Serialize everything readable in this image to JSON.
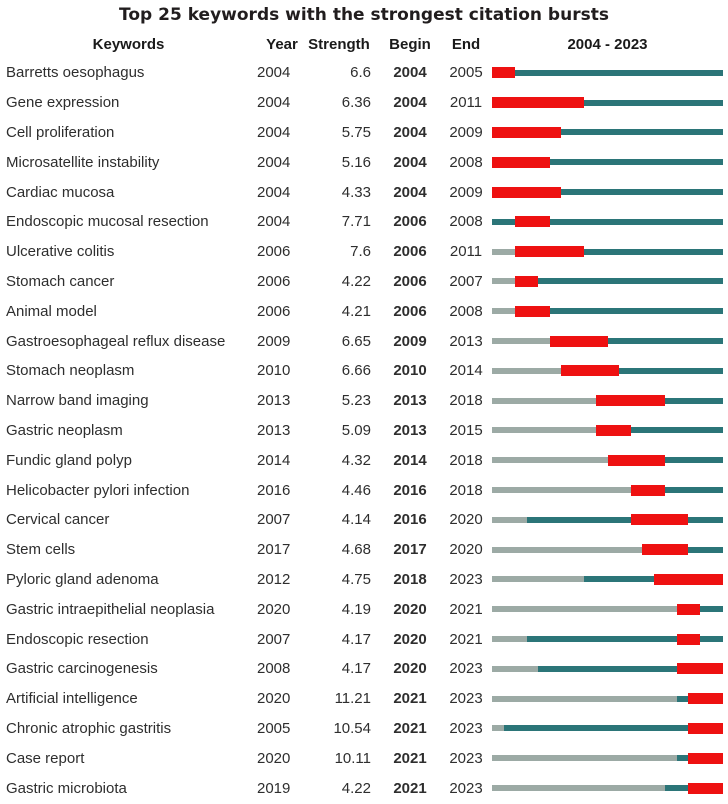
{
  "chart_data": {
    "type": "table",
    "title": "Top 25 keywords with the strongest citation bursts",
    "columns": [
      "Keywords",
      "Year",
      "Strength",
      "Begin",
      "End",
      "2004 - 2023"
    ],
    "timeline": {
      "start": 2004,
      "end": 2023
    },
    "colors": {
      "burst": "#ee1111",
      "active": "#2b7578",
      "inactive": "#9caaa5",
      "title_text": "#211d1e",
      "body_text": "#2e2e2e"
    },
    "rows": [
      {
        "keyword": "Barretts oesophagus",
        "year": 2004,
        "strength": "6.6",
        "begin": 2004,
        "end": 2005
      },
      {
        "keyword": "Gene expression",
        "year": 2004,
        "strength": "6.36",
        "begin": 2004,
        "end": 2011
      },
      {
        "keyword": "Cell proliferation",
        "year": 2004,
        "strength": "5.75",
        "begin": 2004,
        "end": 2009
      },
      {
        "keyword": "Microsatellite instability",
        "year": 2004,
        "strength": "5.16",
        "begin": 2004,
        "end": 2008
      },
      {
        "keyword": "Cardiac mucosa",
        "year": 2004,
        "strength": "4.33",
        "begin": 2004,
        "end": 2009
      },
      {
        "keyword": "Endoscopic mucosal resection",
        "year": 2004,
        "strength": "7.71",
        "begin": 2006,
        "end": 2008
      },
      {
        "keyword": "Ulcerative colitis",
        "year": 2006,
        "strength": "7.6",
        "begin": 2006,
        "end": 2011
      },
      {
        "keyword": "Stomach cancer",
        "year": 2006,
        "strength": "4.22",
        "begin": 2006,
        "end": 2007
      },
      {
        "keyword": "Animal model",
        "year": 2006,
        "strength": "4.21",
        "begin": 2006,
        "end": 2008
      },
      {
        "keyword": "Gastroesophageal reflux disease",
        "year": 2009,
        "strength": "6.65",
        "begin": 2009,
        "end": 2013
      },
      {
        "keyword": "Stomach neoplasm",
        "year": 2010,
        "strength": "6.66",
        "begin": 2010,
        "end": 2014
      },
      {
        "keyword": "Narrow band imaging",
        "year": 2013,
        "strength": "5.23",
        "begin": 2013,
        "end": 2018
      },
      {
        "keyword": "Gastric neoplasm",
        "year": 2013,
        "strength": "5.09",
        "begin": 2013,
        "end": 2015
      },
      {
        "keyword": "Fundic gland polyp",
        "year": 2014,
        "strength": "4.32",
        "begin": 2014,
        "end": 2018
      },
      {
        "keyword": "Helicobacter pylori infection",
        "year": 2016,
        "strength": "4.46",
        "begin": 2016,
        "end": 2018
      },
      {
        "keyword": "Cervical cancer",
        "year": 2007,
        "strength": "4.14",
        "begin": 2016,
        "end": 2020
      },
      {
        "keyword": "Stem cells",
        "year": 2017,
        "strength": "4.68",
        "begin": 2017,
        "end": 2020
      },
      {
        "keyword": "Pyloric gland adenoma",
        "year": 2012,
        "strength": "4.75",
        "begin": 2018,
        "end": 2023
      },
      {
        "keyword": "Gastric intraepithelial neoplasia",
        "year": 2020,
        "strength": "4.19",
        "begin": 2020,
        "end": 2021
      },
      {
        "keyword": "Endoscopic resection",
        "year": 2007,
        "strength": "4.17",
        "begin": 2020,
        "end": 2021
      },
      {
        "keyword": "Gastric carcinogenesis",
        "year": 2008,
        "strength": "4.17",
        "begin": 2020,
        "end": 2023
      },
      {
        "keyword": "Artificial intelligence",
        "year": 2020,
        "strength": "11.21",
        "begin": 2021,
        "end": 2023
      },
      {
        "keyword": "Chronic atrophic gastritis",
        "year": 2005,
        "strength": "10.54",
        "begin": 2021,
        "end": 2023
      },
      {
        "keyword": "Case report",
        "year": 2020,
        "strength": "10.11",
        "begin": 2021,
        "end": 2023
      },
      {
        "keyword": "Gastric microbiota",
        "year": 2019,
        "strength": "4.22",
        "begin": 2021,
        "end": 2023
      }
    ]
  }
}
